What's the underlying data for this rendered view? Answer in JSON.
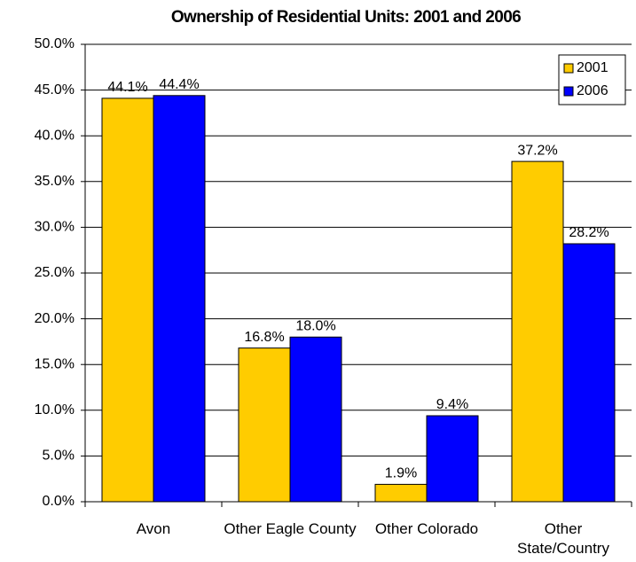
{
  "chart_data": {
    "type": "bar",
    "title": "Ownership of Residential Units: 2001 and 2006",
    "categories": [
      "Avon",
      "Other Eagle County",
      "Other Colorado",
      "Other State/Country"
    ],
    "series": [
      {
        "name": "2001",
        "color": "#FFCC00",
        "values": [
          44.1,
          16.8,
          1.9,
          37.2
        ],
        "value_labels": [
          "44.1%",
          "16.8%",
          "1.9%",
          "37.2%"
        ]
      },
      {
        "name": "2006",
        "color": "#0000FF",
        "values": [
          44.4,
          18.0,
          9.4,
          28.2
        ],
        "value_labels": [
          "44.4%",
          "18.0%",
          "9.4%",
          "28.2%"
        ]
      }
    ],
    "ylim": [
      0,
      50
    ],
    "yticks": [
      {
        "value": 0,
        "label": "0.0%"
      },
      {
        "value": 5,
        "label": "5.0%"
      },
      {
        "value": 10,
        "label": "10.0%"
      },
      {
        "value": 15,
        "label": "15.0%"
      },
      {
        "value": 20,
        "label": "20.0%"
      },
      {
        "value": 25,
        "label": "25.0%"
      },
      {
        "value": 30,
        "label": "30.0%"
      },
      {
        "value": 35,
        "label": "35.0%"
      },
      {
        "value": 40,
        "label": "40.0%"
      },
      {
        "value": 45,
        "label": "45.0%"
      },
      {
        "value": 50,
        "label": "50.0%"
      }
    ],
    "grid": true,
    "legend": "top-right"
  }
}
